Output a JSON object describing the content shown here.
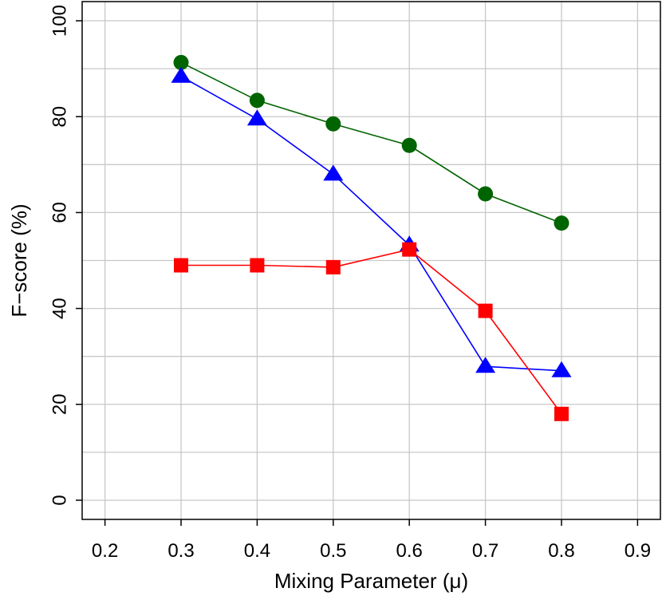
{
  "chart_data": {
    "type": "line",
    "title": "",
    "xlabel": "Mixing Parameter (μ)",
    "ylabel": "F−score (%)",
    "xlim": [
      0.17,
      0.93
    ],
    "ylim": [
      -4,
      104
    ],
    "x_ticks": [
      0.2,
      0.3,
      0.4,
      0.5,
      0.6,
      0.7,
      0.8,
      0.9
    ],
    "x_tick_labels": [
      "0.2",
      "0.3",
      "0.4",
      "0.5",
      "0.6",
      "0.7",
      "0.8",
      "0.9"
    ],
    "y_ticks": [
      0,
      20,
      40,
      60,
      80,
      100
    ],
    "y_tick_labels": [
      "0",
      "20",
      "40",
      "60",
      "80",
      "100"
    ],
    "grid_x": [
      0.2,
      0.3,
      0.4,
      0.5,
      0.6,
      0.7,
      0.8,
      0.9
    ],
    "grid_y": [
      0,
      10,
      20,
      30,
      40,
      50,
      60,
      70,
      80,
      90,
      100
    ],
    "grid": true,
    "legend": "none",
    "x": [
      0.3,
      0.4,
      0.5,
      0.6,
      0.7,
      0.8
    ],
    "series": [
      {
        "color": "#006400",
        "marker": "circle",
        "values": [
          91.3,
          83.4,
          78.5,
          74.0,
          63.9,
          57.8
        ]
      },
      {
        "color": "#0000ff",
        "marker": "triangle",
        "values": [
          88.4,
          79.5,
          68.0,
          53.2,
          27.9,
          27.0
        ]
      },
      {
        "color": "#ff0000",
        "marker": "square",
        "values": [
          49.0,
          49.0,
          48.6,
          52.3,
          39.5,
          18.0
        ]
      }
    ]
  }
}
